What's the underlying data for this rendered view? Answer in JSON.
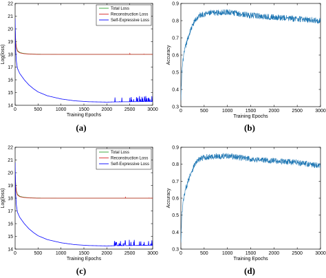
{
  "chart_data": [
    {
      "type": "line",
      "panel_label": "(a)",
      "xlabel": "Training Epochs",
      "ylabel": "Log(loss)",
      "xlim": [
        0,
        3000
      ],
      "ylim": [
        14,
        22
      ],
      "xticks": [
        0,
        500,
        1000,
        1500,
        2000,
        2500,
        3000
      ],
      "yticks": [
        14,
        15,
        16,
        17,
        18,
        19,
        20,
        21,
        22
      ],
      "grid": false,
      "legend_position": "top-right",
      "series": [
        {
          "name": "Total Loss",
          "color": "#2ca02c",
          "x": [
            0,
            10,
            25,
            50,
            100,
            150,
            200,
            300,
            500,
            1000,
            2000,
            3000
          ],
          "values": [
            20.2,
            19.2,
            18.6,
            18.3,
            18.15,
            18.1,
            18.07,
            18.03,
            18.01,
            18.0,
            18.0,
            18.0
          ]
        },
        {
          "name": "Reconstruction Loss",
          "color": "#d62728",
          "x": [
            0,
            10,
            25,
            50,
            100,
            150,
            200,
            300,
            500,
            1000,
            2000,
            3000
          ],
          "values": [
            20.1,
            19.1,
            18.55,
            18.25,
            18.12,
            18.08,
            18.05,
            18.02,
            18.0,
            18.0,
            18.0,
            18.0
          ]
        },
        {
          "name": "Self-Expressive Loss",
          "color": "#0000ff",
          "x": [
            0,
            10,
            25,
            50,
            100,
            200,
            300,
            400,
            500,
            700,
            1000,
            1300,
            1600,
            2000,
            2200,
            2500,
            3000
          ],
          "values": [
            20.8,
            18.5,
            17.5,
            16.9,
            16.5,
            16.0,
            15.6,
            15.3,
            15.05,
            14.75,
            14.5,
            14.35,
            14.28,
            14.25,
            14.27,
            14.28,
            14.3
          ]
        }
      ]
    },
    {
      "type": "line",
      "panel_label": "(b)",
      "xlabel": "Training Epochs",
      "ylabel": "Accuracy",
      "xlim": [
        0,
        3000
      ],
      "ylim": [
        0.3,
        0.9
      ],
      "xticks": [
        0,
        500,
        1000,
        1500,
        2000,
        2500,
        3000
      ],
      "yticks": [
        0.3,
        0.4,
        0.5,
        0.6,
        0.7,
        0.8,
        0.9
      ],
      "grid": false,
      "series": [
        {
          "color": "#1f77b4",
          "x": [
            0,
            20,
            50,
            100,
            200,
            300,
            400,
            500,
            700,
            1000,
            1500,
            2000,
            2500,
            3000
          ],
          "values": [
            0.33,
            0.5,
            0.58,
            0.65,
            0.74,
            0.8,
            0.83,
            0.84,
            0.845,
            0.85,
            0.83,
            0.82,
            0.81,
            0.8
          ]
        }
      ]
    },
    {
      "type": "line",
      "panel_label": "(c)",
      "xlabel": "Training Epochs",
      "ylabel": "Log(loss)",
      "xlim": [
        0,
        3000
      ],
      "ylim": [
        14,
        22
      ],
      "xticks": [
        0,
        500,
        1000,
        1500,
        2000,
        2500,
        3000
      ],
      "yticks": [
        14,
        15,
        16,
        17,
        18,
        19,
        20,
        21,
        22
      ],
      "grid": false,
      "legend_position": "top-right",
      "series": [
        {
          "name": "Total Loss",
          "color": "#2ca02c",
          "x": [
            0,
            10,
            25,
            50,
            100,
            150,
            200,
            300,
            500,
            1000,
            2000,
            3000
          ],
          "values": [
            20.2,
            19.2,
            18.6,
            18.3,
            18.15,
            18.1,
            18.07,
            18.03,
            18.01,
            18.0,
            18.0,
            18.0
          ]
        },
        {
          "name": "Reconstruction Loss",
          "color": "#d62728",
          "x": [
            0,
            10,
            25,
            50,
            100,
            150,
            200,
            300,
            500,
            1000,
            2000,
            3000
          ],
          "values": [
            20.1,
            19.1,
            18.55,
            18.25,
            18.12,
            18.08,
            18.05,
            18.02,
            18.0,
            18.0,
            18.0,
            18.0
          ]
        },
        {
          "name": "Self-Expressive Loss",
          "color": "#0000ff",
          "x": [
            0,
            10,
            25,
            50,
            100,
            200,
            300,
            400,
            500,
            700,
            1000,
            1300,
            1600,
            2000,
            2200,
            2500,
            3000
          ],
          "values": [
            20.8,
            18.5,
            17.5,
            16.9,
            16.5,
            16.0,
            15.6,
            15.3,
            15.05,
            14.75,
            14.5,
            14.35,
            14.28,
            14.25,
            14.27,
            14.28,
            14.3
          ]
        }
      ]
    },
    {
      "type": "line",
      "panel_label": "(d)",
      "xlabel": "Training Epochs",
      "ylabel": "Accuracy",
      "xlim": [
        0,
        3000
      ],
      "ylim": [
        0.3,
        0.9
      ],
      "xticks": [
        0,
        500,
        1000,
        1500,
        2000,
        2500,
        3000
      ],
      "yticks": [
        0.3,
        0.4,
        0.5,
        0.6,
        0.7,
        0.8,
        0.9
      ],
      "grid": false,
      "series": [
        {
          "color": "#1f77b4",
          "x": [
            0,
            20,
            50,
            100,
            200,
            300,
            400,
            500,
            700,
            1000,
            1500,
            2000,
            2500,
            3000
          ],
          "values": [
            0.33,
            0.5,
            0.58,
            0.65,
            0.74,
            0.8,
            0.83,
            0.84,
            0.845,
            0.85,
            0.83,
            0.82,
            0.81,
            0.79
          ]
        }
      ]
    }
  ]
}
